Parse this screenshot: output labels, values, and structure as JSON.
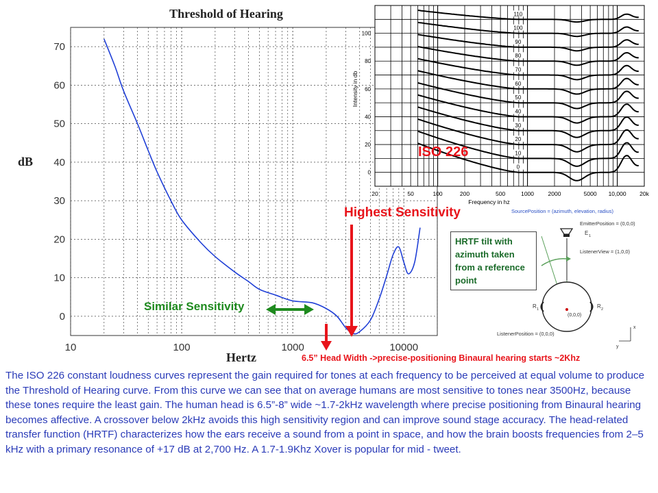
{
  "chart_data": [
    {
      "type": "line",
      "title": "Threshold of Hearing",
      "xlabel": "Hertz",
      "ylabel": "dB",
      "x_scale": "log",
      "xlim": [
        10,
        20000
      ],
      "ylim": [
        -5,
        75
      ],
      "grid": true,
      "x_ticks": [
        "10",
        "100",
        "1000",
        "10000"
      ],
      "y_ticks": [
        "0",
        "10",
        "20",
        "30",
        "40",
        "50",
        "60",
        "70"
      ],
      "series": [
        {
          "color": "#1f3fd6",
          "x": [
            20,
            25,
            30,
            40,
            50,
            60,
            80,
            100,
            150,
            200,
            300,
            400,
            500,
            700,
            1000,
            1500,
            2000,
            2500,
            3000,
            3500,
            4000,
            5000,
            6000,
            7000,
            8000,
            9000,
            10000,
            11000,
            12500,
            14000
          ],
          "y": [
            72,
            65,
            58.5,
            50,
            43,
            37.5,
            30,
            25,
            19,
            15.5,
            11.5,
            9,
            7,
            5.5,
            4,
            3.5,
            2,
            0,
            -3,
            -4.5,
            -4,
            -1,
            4.5,
            10.5,
            16,
            18,
            14,
            11,
            14,
            23
          ]
        }
      ]
    },
    {
      "type": "line",
      "title": "ISO 226",
      "xlabel": "Frequency in hz",
      "ylabel": "Intensity in db",
      "x_scale": "log",
      "xlim": [
        20,
        20000
      ],
      "ylim": [
        -10,
        120
      ],
      "grid": true,
      "x_ticks": [
        "20",
        "50",
        "100",
        "200",
        "500",
        "1000",
        "2000",
        "5000",
        "10,000",
        "20k"
      ],
      "y_ticks": [
        "0",
        "20",
        "40",
        "60",
        "80",
        "100"
      ],
      "curve_labels": [
        "110",
        "100",
        "90",
        "80",
        "70",
        "60",
        "50",
        "40",
        "30",
        "20",
        "10",
        "0"
      ],
      "phon_levels": [
        110,
        100,
        90,
        80,
        70,
        60,
        50,
        40,
        30,
        20,
        10,
        0
      ]
    }
  ],
  "annotations": {
    "iso": "ISO 226",
    "highest": "Highest Sensitivity",
    "similar": "Similar Sensitivity",
    "head_width": "6.5” Head Width ->precise-positioning  Binaural  hearing starts ~2Khz",
    "hrtf": "HRTF tilt with azimuth taken from a reference point"
  },
  "diagram": {
    "source_position": "SourcePosition = (azimuth, elevation, radius)",
    "emitter_position": "EmitterPosition = (0,0,0)",
    "emitter_label": "E",
    "emitter_sub": "1",
    "listener_view": "ListenerView = (1,0,0)",
    "r1": "R",
    "r1_sub": "1",
    "r2": "R",
    "r2_sub": "2",
    "origin": "(0,0,0)",
    "listener_position": "ListenerPosition = (0,0,0)",
    "axis_x": "x",
    "axis_y": "y"
  },
  "description": "The ISO 226 constant loudness curves represent the gain required for tones at each frequency to be perceived at equal volume to produce the Threshold of Hearing curve.  From this curve we can see that on average humans are most sensitive to tones near 3500Hz,  because these tones require the least gain. The human head is 6.5”-8”  wide ~1.7-2kHz  wavelength where precise positioning from Binaural hearing becomes affective. A crossover below 2kHz avoids this high sensitivity region and can improve sound stage accuracy. The head-related transfer function (HRTF) characterizes how the ears receive a sound from a point in space, and how the brain boosts frequencies from 2–5 kHz with a primary resonance of +17 dB at 2,700 Hz.  A 1.7-1.9Khz Xover is popular for mid - tweet."
}
